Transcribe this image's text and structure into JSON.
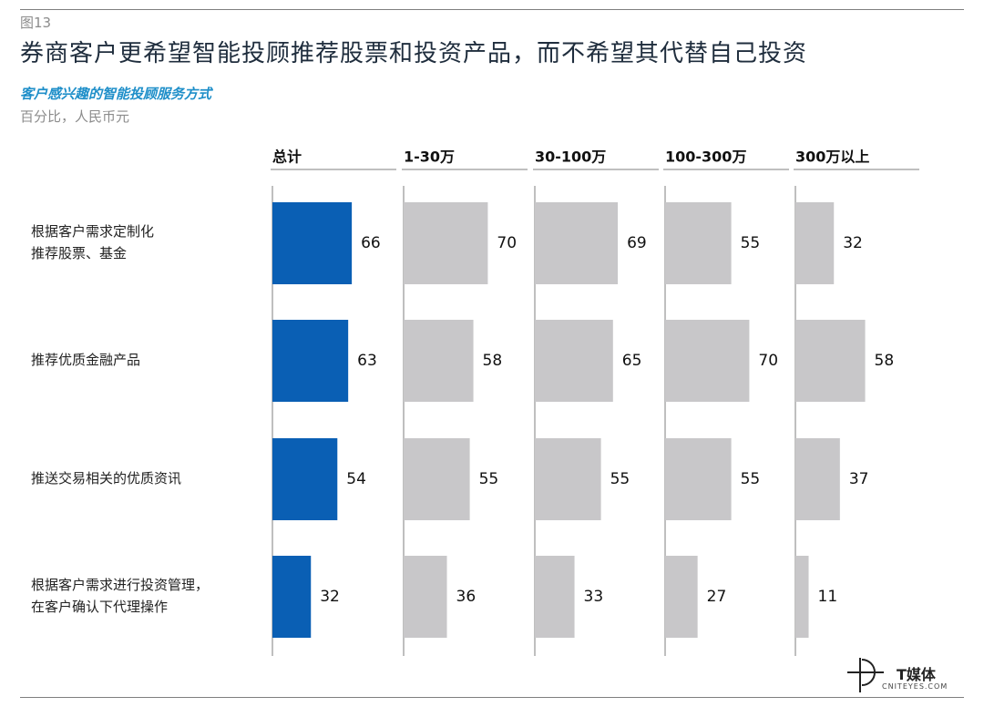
{
  "figure_label": "图13",
  "title": "券商客户更希望智能投顾推荐股票和投资产品，而不希望其代替自己投资",
  "subtitle": "客户感兴趣的智能投顾服务方式",
  "unit_note": "百分比，人民币元",
  "colors": {
    "total": "#0a5fb4",
    "other": "#c8c7c9",
    "rule": "#7f7f7f"
  },
  "chart_data": {
    "type": "bar",
    "orientation": "horizontal-small-multiples",
    "categories": [
      "根据客户需求定制化\n推荐股票、基金",
      "推荐优质金融产品",
      "推送交易相关的优质资讯",
      "根据客户需求进行投资管理，\n在客户确认下代理操作"
    ],
    "series": [
      {
        "name": "总计",
        "values": [
          66,
          63,
          54,
          32
        ]
      },
      {
        "name": "1-30万",
        "values": [
          70,
          58,
          55,
          36
        ]
      },
      {
        "name": "30-100万",
        "values": [
          69,
          65,
          55,
          33
        ]
      },
      {
        "name": "100-300万",
        "values": [
          55,
          70,
          55,
          27
        ]
      },
      {
        "name": "300万以上",
        "values": [
          32,
          58,
          37,
          11
        ]
      }
    ],
    "xlim": [
      0,
      100
    ],
    "grid": false,
    "legend": "none"
  },
  "logo": {
    "name": "T媒体",
    "sub": "CNITEYES.COM"
  }
}
